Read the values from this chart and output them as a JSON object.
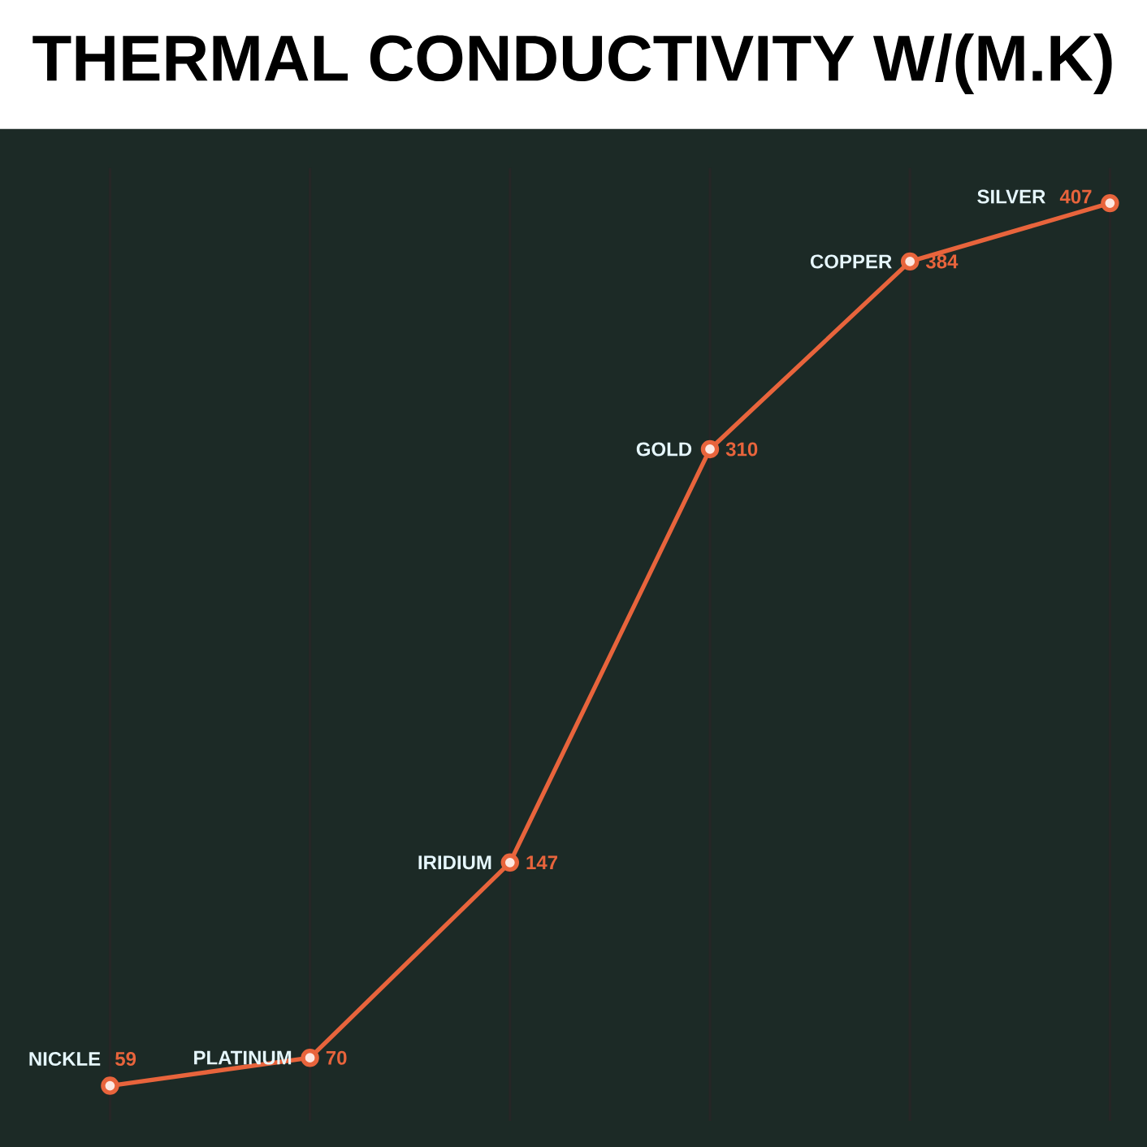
{
  "chart_data": {
    "type": "line",
    "title": "THERMAL CONDUCTIVITY W/(M.K)",
    "categories": [
      null,
      null,
      null,
      null,
      null,
      null
    ],
    "values": [
      59,
      70,
      147,
      310,
      384,
      407
    ],
    "annotations": [
      "NICKLE",
      "PLATINUM",
      "IRIDIUM",
      "GOLD",
      "COPPER",
      "SILVER"
    ],
    "color": "#e8643c",
    "marker": "circle",
    "grid": "x",
    "data_labels": true,
    "tick_labels": false
  }
}
